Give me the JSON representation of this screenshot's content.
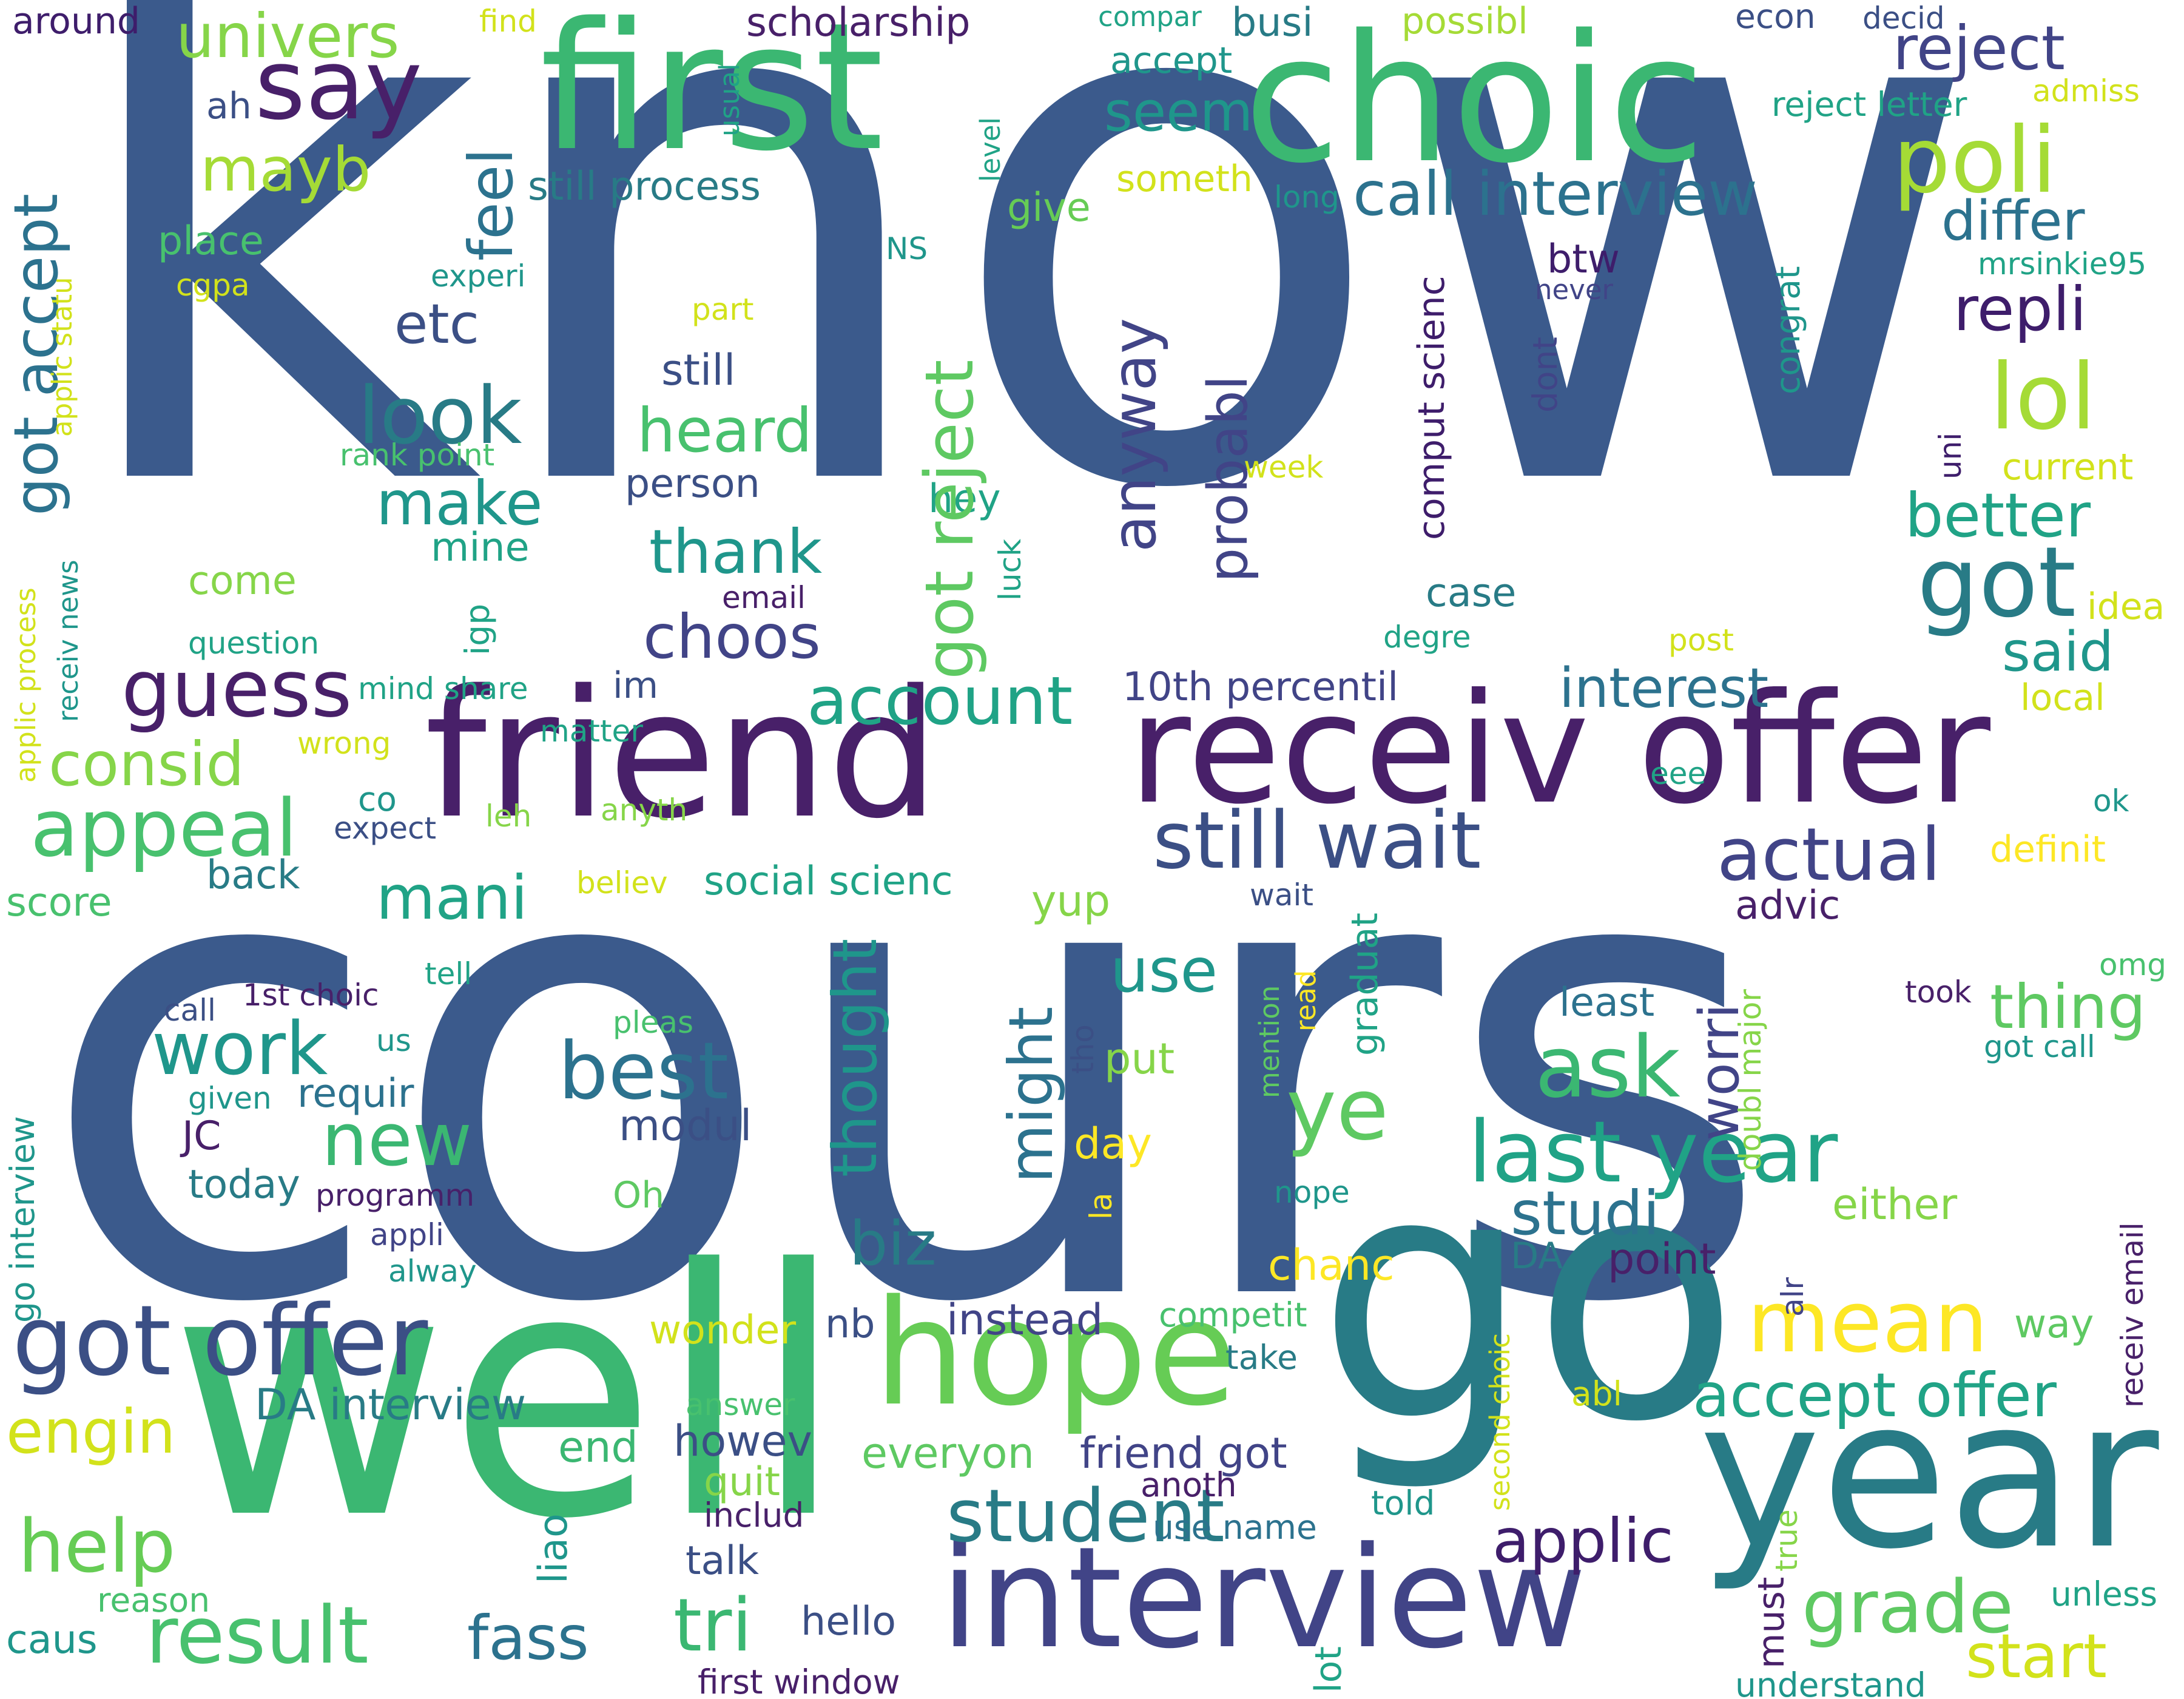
{
  "words": [
    {
      "id": "know",
      "text": "know",
      "color": "#3b5a8c"
    },
    {
      "id": "cours",
      "text": "cours",
      "color": "#3b5a8c"
    },
    {
      "id": "well",
      "text": "well",
      "color": "#3bb772"
    },
    {
      "id": "go",
      "text": "go",
      "color": "#287b86"
    },
    {
      "id": "first",
      "text": "first",
      "color": "#3bb772"
    },
    {
      "id": "choic",
      "text": "choic",
      "color": "#3bb772"
    },
    {
      "id": "friend",
      "text": "friend",
      "color": "#482069"
    },
    {
      "id": "receiv-offer",
      "text": "receiv offer",
      "color": "#482069"
    },
    {
      "id": "year",
      "text": "year",
      "color": "#287b86"
    },
    {
      "id": "interview",
      "text": "interview",
      "color": "#414487"
    },
    {
      "id": "hope",
      "text": "hope",
      "color": "#66cc55"
    },
    {
      "id": "got-offer",
      "text": "got offer",
      "color": "#3b4f85"
    },
    {
      "id": "say",
      "text": "say",
      "color": "#482069"
    },
    {
      "id": "univers",
      "text": "univers",
      "color": "#86d549"
    },
    {
      "id": "poli",
      "text": "poli",
      "color": "#a5db36"
    },
    {
      "id": "lol",
      "text": "lol",
      "color": "#a5db36"
    },
    {
      "id": "got",
      "text": "got",
      "color": "#287b86"
    },
    {
      "id": "still-wait",
      "text": "still wait",
      "color": "#3b4f85"
    },
    {
      "id": "last-year",
      "text": "last year",
      "color": "#20a386"
    },
    {
      "id": "result",
      "text": "result",
      "color": "#48c16e"
    },
    {
      "id": "student",
      "text": "student",
      "color": "#287b86"
    },
    {
      "id": "grade",
      "text": "grade",
      "color": "#5ec962"
    },
    {
      "id": "accept-offer",
      "text": "accept offer",
      "color": "#20a386"
    },
    {
      "id": "mean",
      "text": "mean",
      "color": "#fde725"
    },
    {
      "id": "guess",
      "text": "guess",
      "color": "#482069"
    },
    {
      "id": "appeal",
      "text": "appeal",
      "color": "#48c16e"
    },
    {
      "id": "look",
      "text": "look",
      "color": "#287b86"
    },
    {
      "id": "best",
      "text": "best",
      "color": "#2c728e"
    },
    {
      "id": "ask",
      "text": "ask",
      "color": "#3bb772"
    },
    {
      "id": "actual",
      "text": "actual",
      "color": "#414487"
    },
    {
      "id": "call-interview",
      "text": "call interview",
      "color": "#2c728e"
    },
    {
      "id": "reject",
      "text": "reject",
      "color": "#414487"
    },
    {
      "id": "seem",
      "text": "seem",
      "color": "#1f968b"
    },
    {
      "id": "scholarship",
      "text": "scholarship",
      "color": "#482069"
    },
    {
      "id": "mayb",
      "text": "mayb",
      "color": "#a5db36"
    },
    {
      "id": "got-reject",
      "text": "got reject",
      "color": "#5ec962"
    },
    {
      "id": "consid",
      "text": "consid",
      "color": "#86d549"
    },
    {
      "id": "got-accept",
      "text": "got accept",
      "color": "#2c728e"
    },
    {
      "id": "feel",
      "text": "feel",
      "color": "#2c728e"
    },
    {
      "id": "etc",
      "text": "etc",
      "color": "#3b4f85"
    },
    {
      "id": "heard",
      "text": "heard",
      "color": "#48c16e"
    },
    {
      "id": "make",
      "text": "make",
      "color": "#1f968b"
    },
    {
      "id": "thank",
      "text": "thank",
      "color": "#1f968b"
    },
    {
      "id": "choos",
      "text": "choos",
      "color": "#414487"
    },
    {
      "id": "account",
      "text": "account",
      "color": "#20a386"
    },
    {
      "id": "mani",
      "text": "mani",
      "color": "#20a386"
    },
    {
      "id": "work",
      "text": "work",
      "color": "#1f968b"
    },
    {
      "id": "new",
      "text": "new",
      "color": "#3bb772"
    },
    {
      "id": "help",
      "text": "help",
      "color": "#66cc55"
    },
    {
      "id": "engin",
      "text": "engin",
      "color": "#d2e21b"
    },
    {
      "id": "fass",
      "text": "fass",
      "color": "#2c728e"
    },
    {
      "id": "tri",
      "text": "tri",
      "color": "#3bb772"
    },
    {
      "id": "applic",
      "text": "applic",
      "color": "#3e1d6b"
    },
    {
      "id": "start",
      "text": "start",
      "color": "#d2e21b"
    },
    {
      "id": "repli",
      "text": "repli",
      "color": "#3e1d6b"
    },
    {
      "id": "better",
      "text": "better",
      "color": "#20a386"
    },
    {
      "id": "differ",
      "text": "differ",
      "color": "#2c728e"
    },
    {
      "id": "interest",
      "text": "interest",
      "color": "#2c728e"
    },
    {
      "id": "said",
      "text": "said",
      "color": "#1f968b"
    },
    {
      "id": "thing",
      "text": "thing",
      "color": "#5ec962"
    },
    {
      "id": "ye",
      "text": "ye",
      "color": "#5ec962"
    },
    {
      "id": "use",
      "text": "use",
      "color": "#1f968b"
    },
    {
      "id": "might",
      "text": "might",
      "color": "#2c728e"
    },
    {
      "id": "thought",
      "text": "thought",
      "color": "#1f968b"
    },
    {
      "id": "studi",
      "text": "studi",
      "color": "#2c728e"
    },
    {
      "id": "biz",
      "text": "biz",
      "color": "#287b86"
    },
    {
      "id": "worri",
      "text": "worri",
      "color": "#414487"
    },
    {
      "id": "anyway",
      "text": "anyway",
      "color": "#414487"
    },
    {
      "id": "probabl",
      "text": "probabl",
      "color": "#414487"
    },
    {
      "id": "still-process",
      "text": "still process",
      "color": "#287b86"
    },
    {
      "id": "10th-percentil",
      "text": "10th percentil",
      "color": "#414487"
    },
    {
      "id": "social-scienc",
      "text": "social scienc",
      "color": "#20a386"
    },
    {
      "id": "modul",
      "text": "modul",
      "color": "#3b4f85"
    },
    {
      "id": "day",
      "text": "day",
      "color": "#fde725"
    },
    {
      "id": "yup",
      "text": "yup",
      "color": "#86d549"
    },
    {
      "id": "put",
      "text": "put",
      "color": "#86d549"
    },
    {
      "id": "back",
      "text": "back",
      "color": "#287b86"
    },
    {
      "id": "score",
      "text": "score",
      "color": "#48c16e"
    },
    {
      "id": "JC",
      "text": "JC",
      "color": "#482069"
    },
    {
      "id": "today",
      "text": "today",
      "color": "#287b86"
    },
    {
      "id": "requir",
      "text": "requir",
      "color": "#2c728e"
    },
    {
      "id": "instead",
      "text": "instead",
      "color": "#414487"
    },
    {
      "id": "howev",
      "text": "howev",
      "color": "#3b4f85"
    },
    {
      "id": "friend-got",
      "text": "friend got",
      "color": "#414487"
    },
    {
      "id": "everyon",
      "text": "everyon",
      "color": "#5ec962"
    },
    {
      "id": "DA-interview",
      "text": "DA interview",
      "color": "#287b86"
    },
    {
      "id": "end",
      "text": "end",
      "color": "#3bb772"
    },
    {
      "id": "wonder",
      "text": "wonder",
      "color": "#d2e21b"
    },
    {
      "id": "nb",
      "text": "nb",
      "color": "#3b4f85"
    },
    {
      "id": "quit",
      "text": "quit",
      "color": "#86d549"
    },
    {
      "id": "includ",
      "text": "includ",
      "color": "#482069"
    },
    {
      "id": "talk",
      "text": "talk",
      "color": "#3b4f85"
    },
    {
      "id": "liao",
      "text": "liao",
      "color": "#1f968b"
    },
    {
      "id": "hello",
      "text": "hello",
      "color": "#3b4f85"
    },
    {
      "id": "first-window",
      "text": "first window",
      "color": "#482069"
    },
    {
      "id": "caus",
      "text": "caus",
      "color": "#1f968b"
    },
    {
      "id": "reason",
      "text": "reason",
      "color": "#48c16e"
    },
    {
      "id": "lot",
      "text": "lot",
      "color": "#20a386"
    },
    {
      "id": "must",
      "text": "must",
      "color": "#482069"
    },
    {
      "id": "understand",
      "text": "understand",
      "color": "#1f968b"
    },
    {
      "id": "unless",
      "text": "unless",
      "color": "#20a386"
    },
    {
      "id": "chanc",
      "text": "chanc",
      "color": "#fde725"
    },
    {
      "id": "competit",
      "text": "competit",
      "color": "#48c16e"
    },
    {
      "id": "take",
      "text": "take",
      "color": "#287b86"
    },
    {
      "id": "anoth",
      "text": "anoth",
      "color": "#482069"
    },
    {
      "id": "use-name",
      "text": "use name",
      "color": "#2c728e"
    },
    {
      "id": "told",
      "text": "told",
      "color": "#1f968b"
    },
    {
      "id": "abl",
      "text": "abl",
      "color": "#d2e21b"
    },
    {
      "id": "second-choic",
      "text": "second choic",
      "color": "#d2e21b"
    },
    {
      "id": "true",
      "text": "true",
      "color": "#86d549"
    },
    {
      "id": "alr",
      "text": "alr",
      "color": "#414487"
    },
    {
      "id": "DA",
      "text": "DA",
      "color": "#287b86"
    },
    {
      "id": "point",
      "text": "point",
      "color": "#482069"
    },
    {
      "id": "either",
      "text": "either",
      "color": "#86d549"
    },
    {
      "id": "way",
      "text": "way",
      "color": "#5ec962"
    },
    {
      "id": "receiv-email",
      "text": "receiv email",
      "color": "#482069"
    },
    {
      "id": "least",
      "text": "least",
      "color": "#2c728e"
    },
    {
      "id": "advic",
      "text": "advic",
      "color": "#482069"
    },
    {
      "id": "doubl-major",
      "text": "doubl major",
      "color": "#86d549"
    },
    {
      "id": "graduat",
      "text": "graduat",
      "color": "#20a386"
    },
    {
      "id": "nope",
      "text": "nope",
      "color": "#1f968b"
    },
    {
      "id": "mention",
      "text": "mention",
      "color": "#5ec962"
    },
    {
      "id": "read",
      "text": "read",
      "color": "#fde725"
    },
    {
      "id": "wait",
      "text": "wait",
      "color": "#3b4f85"
    },
    {
      "id": "tho",
      "text": "tho",
      "color": "#3b4f85"
    },
    {
      "id": "la",
      "text": "la",
      "color": "#fde725"
    },
    {
      "id": "took",
      "text": "took",
      "color": "#482069"
    },
    {
      "id": "got-call",
      "text": "got call",
      "color": "#1f968b"
    },
    {
      "id": "omg",
      "text": "omg",
      "color": "#48c16e"
    },
    {
      "id": "definit",
      "text": "definit",
      "color": "#fde725"
    },
    {
      "id": "ok",
      "text": "ok",
      "color": "#1f968b"
    },
    {
      "id": "eee",
      "text": "eee",
      "color": "#20a386"
    },
    {
      "id": "local",
      "text": "local",
      "color": "#d2e21b"
    },
    {
      "id": "idea",
      "text": "idea",
      "color": "#d2e21b"
    },
    {
      "id": "post",
      "text": "post",
      "color": "#d2e21b"
    },
    {
      "id": "degre",
      "text": "degre",
      "color": "#20a386"
    },
    {
      "id": "case",
      "text": "case",
      "color": "#287b86"
    },
    {
      "id": "comput-scienc",
      "text": "comput scienc",
      "color": "#3e1d6b"
    },
    {
      "id": "dont",
      "text": "dont",
      "color": "#414487"
    },
    {
      "id": "btw",
      "text": "btw",
      "color": "#3e1d6b"
    },
    {
      "id": "never",
      "text": "never",
      "color": "#414487"
    },
    {
      "id": "congrat",
      "text": "congrat",
      "color": "#1f968b"
    },
    {
      "id": "current",
      "text": "current",
      "color": "#d2e21b"
    },
    {
      "id": "uni",
      "text": "uni",
      "color": "#3e1d6b"
    },
    {
      "id": "mrsinkie95",
      "text": "mrsinkie95",
      "color": "#20a386"
    },
    {
      "id": "NS",
      "text": "NS",
      "color": "#1f968b"
    },
    {
      "id": "long",
      "text": "long",
      "color": "#1f968b"
    },
    {
      "id": "someth",
      "text": "someth",
      "color": "#d2e21b"
    },
    {
      "id": "give",
      "text": "give",
      "color": "#66cc55"
    },
    {
      "id": "level",
      "text": "level",
      "color": "#20a386"
    },
    {
      "id": "reject-letter",
      "text": "reject letter",
      "color": "#20a386"
    },
    {
      "id": "admiss",
      "text": "admiss",
      "color": "#d2e21b"
    },
    {
      "id": "econ",
      "text": "econ",
      "color": "#3b4f85"
    },
    {
      "id": "decid",
      "text": "decid",
      "color": "#3b4f85"
    },
    {
      "id": "busi",
      "text": "busi",
      "color": "#287b86"
    },
    {
      "id": "possibl",
      "text": "possibl",
      "color": "#a5db36"
    },
    {
      "id": "compar",
      "text": "compar",
      "color": "#20a386"
    },
    {
      "id": "accept",
      "text": "accept",
      "color": "#1f968b"
    },
    {
      "id": "usual",
      "text": "usual",
      "color": "#20a386"
    },
    {
      "id": "ah",
      "text": "ah",
      "color": "#3b4f85"
    },
    {
      "id": "find",
      "text": "find",
      "color": "#d2e21b"
    },
    {
      "id": "around",
      "text": "around",
      "color": "#3e1d6b"
    },
    {
      "id": "part",
      "text": "part",
      "color": "#d2e21b"
    },
    {
      "id": "still",
      "text": "still",
      "color": "#3b4f85"
    },
    {
      "id": "person",
      "text": "person",
      "color": "#3b4f85"
    },
    {
      "id": "hey",
      "text": "hey",
      "color": "#20a386"
    },
    {
      "id": "luck",
      "text": "luck",
      "color": "#20a386"
    },
    {
      "id": "week",
      "text": "week",
      "color": "#d2e21b"
    },
    {
      "id": "im",
      "text": "im",
      "color": "#3b4f85"
    },
    {
      "id": "email",
      "text": "email",
      "color": "#482069"
    },
    {
      "id": "igp",
      "text": "igp",
      "color": "#20a386"
    },
    {
      "id": "mine",
      "text": "mine",
      "color": "#20a386"
    },
    {
      "id": "come",
      "text": "come",
      "color": "#86d549"
    },
    {
      "id": "question",
      "text": "question",
      "color": "#20a386"
    },
    {
      "id": "mind-share",
      "text": "mind share",
      "color": "#20a386"
    },
    {
      "id": "matter",
      "text": "matter",
      "color": "#20a386"
    },
    {
      "id": "wrong",
      "text": "wrong",
      "color": "#d2e21b"
    },
    {
      "id": "co",
      "text": "co",
      "color": "#1f968b"
    },
    {
      "id": "expect",
      "text": "expect",
      "color": "#3b4f85"
    },
    {
      "id": "leh",
      "text": "leh",
      "color": "#86d549"
    },
    {
      "id": "anyth",
      "text": "anyth",
      "color": "#86d549"
    },
    {
      "id": "believ",
      "text": "believ",
      "color": "#d2e21b"
    },
    {
      "id": "tell",
      "text": "tell",
      "color": "#20a386"
    },
    {
      "id": "pleas",
      "text": "pleas",
      "color": "#48c16e"
    },
    {
      "id": "call",
      "text": "call",
      "color": "#3b4f85"
    },
    {
      "id": "1st-choic",
      "text": "1st choic",
      "color": "#482069"
    },
    {
      "id": "us",
      "text": "us",
      "color": "#1f968b"
    },
    {
      "id": "given",
      "text": "given",
      "color": "#1f968b"
    },
    {
      "id": "programm",
      "text": "programm",
      "color": "#482069"
    },
    {
      "id": "Oh",
      "text": "Oh",
      "color": "#5ec962"
    },
    {
      "id": "appli",
      "text": "appli",
      "color": "#414487"
    },
    {
      "id": "alway",
      "text": "alway",
      "color": "#1f968b"
    },
    {
      "id": "answer",
      "text": "answer",
      "color": "#48c16e"
    },
    {
      "id": "place",
      "text": "place",
      "color": "#48c16e"
    },
    {
      "id": "cgpa",
      "text": "cgpa",
      "color": "#d2e21b"
    },
    {
      "id": "experi",
      "text": "experi",
      "color": "#1f968b"
    },
    {
      "id": "rank-point",
      "text": "rank point",
      "color": "#48c16e"
    },
    {
      "id": "applic-statu",
      "text": "applic statu",
      "color": "#d2e21b"
    },
    {
      "id": "applic-process",
      "text": "applic process",
      "color": "#d2e21b"
    },
    {
      "id": "receiv-news",
      "text": "receiv news",
      "color": "#1f968b"
    },
    {
      "id": "go-interview",
      "text": "go interview",
      "color": "#1f968b"
    }
  ]
}
